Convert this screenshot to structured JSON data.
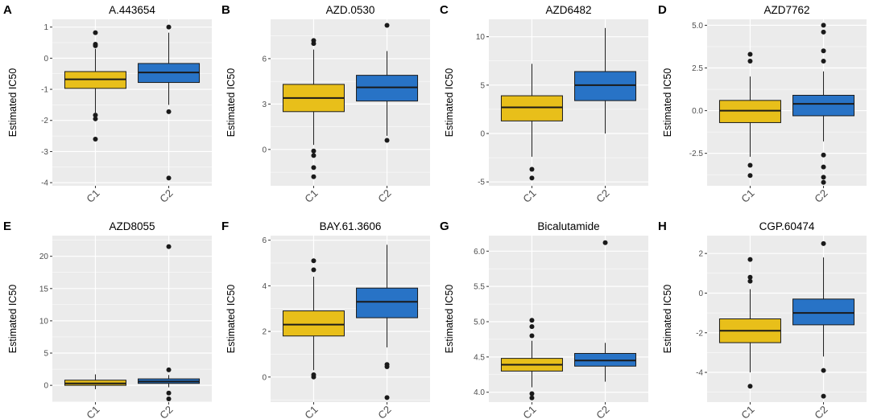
{
  "colors": {
    "C1": "#e8bf1a",
    "C2": "#2873c6"
  },
  "chart_data": [
    {
      "letter": "A",
      "type": "box",
      "title": "A.443654",
      "ylabel": "Estimated IC50",
      "ylim": [
        -4.1,
        1.25
      ],
      "yticks": [
        1,
        0,
        -1,
        -2,
        -3,
        -4
      ],
      "ytick_labels": [
        "1",
        "0",
        "-1",
        "-2",
        "-3",
        "-4"
      ],
      "categories": [
        "C1",
        "C2"
      ],
      "boxes": [
        {
          "group": "C1",
          "lower_whisker": -1.75,
          "q1": -0.97,
          "median": -0.68,
          "q3": -0.43,
          "upper_whisker": 0.3,
          "outliers": [
            0.82,
            0.45,
            0.4,
            -1.83,
            -1.95,
            -2.6
          ]
        },
        {
          "group": "C2",
          "lower_whisker": -1.5,
          "q1": -0.78,
          "median": -0.46,
          "q3": -0.17,
          "upper_whisker": 0.82,
          "outliers": [
            1.0,
            -1.72,
            -3.85
          ]
        }
      ]
    },
    {
      "letter": "B",
      "type": "box",
      "title": "AZD.0530",
      "ylabel": "Estimated IC50",
      "ylim": [
        -2.4,
        8.6
      ],
      "yticks": [
        6,
        3,
        0
      ],
      "ytick_labels": [
        "6",
        "3",
        "0"
      ],
      "categories": [
        "C1",
        "C2"
      ],
      "boxes": [
        {
          "group": "C1",
          "lower_whisker": 0.3,
          "q1": 2.5,
          "median": 3.4,
          "q3": 4.3,
          "upper_whisker": 6.6,
          "outliers": [
            7.2,
            7.0,
            -0.1,
            -0.4,
            -1.2,
            -1.8
          ]
        },
        {
          "group": "C2",
          "lower_whisker": 0.9,
          "q1": 3.2,
          "median": 4.1,
          "q3": 4.9,
          "upper_whisker": 6.5,
          "outliers": [
            8.2,
            0.6
          ]
        }
      ]
    },
    {
      "letter": "C",
      "type": "box",
      "title": "AZD6482",
      "ylabel": "Estimated IC50",
      "ylim": [
        -5.4,
        11.8
      ],
      "yticks": [
        10,
        5,
        0,
        -5
      ],
      "ytick_labels": [
        "10",
        "5",
        "0",
        "-5"
      ],
      "categories": [
        "C1",
        "C2"
      ],
      "boxes": [
        {
          "group": "C1",
          "lower_whisker": -2.4,
          "q1": 1.3,
          "median": 2.7,
          "q3": 3.9,
          "upper_whisker": 7.2,
          "outliers": [
            -3.7,
            -4.6
          ]
        },
        {
          "group": "C2",
          "lower_whisker": 0.0,
          "q1": 3.4,
          "median": 5.0,
          "q3": 6.4,
          "upper_whisker": 10.9,
          "outliers": []
        }
      ]
    },
    {
      "letter": "D",
      "type": "box",
      "title": "AZD7762",
      "ylabel": "Estimated IC50",
      "ylim": [
        -4.4,
        5.35
      ],
      "yticks": [
        5.0,
        2.5,
        0.0,
        -2.5
      ],
      "ytick_labels": [
        "5.0",
        "2.5",
        "0.0",
        "-2.5"
      ],
      "categories": [
        "C1",
        "C2"
      ],
      "boxes": [
        {
          "group": "C1",
          "lower_whisker": -2.7,
          "q1": -0.7,
          "median": 0.0,
          "q3": 0.6,
          "upper_whisker": 2.0,
          "outliers": [
            3.3,
            2.9,
            -3.2,
            -3.8
          ]
        },
        {
          "group": "C2",
          "lower_whisker": -1.8,
          "q1": -0.3,
          "median": 0.4,
          "q3": 0.9,
          "upper_whisker": 2.3,
          "outliers": [
            5.0,
            4.6,
            3.5,
            2.9,
            -2.6,
            -3.3,
            -3.9,
            -4.2
          ]
        }
      ]
    },
    {
      "letter": "E",
      "type": "box",
      "title": "AZD8055",
      "ylabel": "Estimated IC50",
      "ylim": [
        -2.6,
        23.2
      ],
      "yticks": [
        20,
        15,
        10,
        5,
        0
      ],
      "ytick_labels": [
        "20",
        "15",
        "10",
        "5",
        "0"
      ],
      "categories": [
        "C1",
        "C2"
      ],
      "boxes": [
        {
          "group": "C1",
          "lower_whisker": -0.6,
          "q1": 0.0,
          "median": 0.3,
          "q3": 0.8,
          "upper_whisker": 1.7,
          "outliers": []
        },
        {
          "group": "C2",
          "lower_whisker": -0.3,
          "q1": 0.3,
          "median": 0.6,
          "q3": 1.0,
          "upper_whisker": 1.6,
          "outliers": [
            21.5,
            2.4,
            -1.2,
            -2.1
          ]
        }
      ]
    },
    {
      "letter": "F",
      "type": "box",
      "title": "BAY.61.3606",
      "ylabel": "Estimated IC50",
      "ylim": [
        -1.1,
        6.2
      ],
      "yticks": [
        6,
        4,
        2,
        0
      ],
      "ytick_labels": [
        "6",
        "4",
        "2",
        "0"
      ],
      "categories": [
        "C1",
        "C2"
      ],
      "boxes": [
        {
          "group": "C1",
          "lower_whisker": 0.3,
          "q1": 1.8,
          "median": 2.3,
          "q3": 2.9,
          "upper_whisker": 4.4,
          "outliers": [
            5.1,
            4.7,
            0.1,
            0.0
          ]
        },
        {
          "group": "C2",
          "lower_whisker": 1.3,
          "q1": 2.6,
          "median": 3.3,
          "q3": 3.9,
          "upper_whisker": 5.8,
          "outliers": [
            0.55,
            0.45,
            -0.9
          ]
        }
      ]
    },
    {
      "letter": "G",
      "type": "box",
      "title": "Bicalutamide",
      "ylabel": "Estimated IC50",
      "ylim": [
        3.86,
        6.22
      ],
      "yticks": [
        6.0,
        5.5,
        5.0,
        4.5,
        4.0
      ],
      "ytick_labels": [
        "6.0",
        "5.5",
        "5.0",
        "4.5",
        "4.0"
      ],
      "categories": [
        "C1",
        "C2"
      ],
      "boxes": [
        {
          "group": "C1",
          "lower_whisker": 4.07,
          "q1": 4.3,
          "median": 4.39,
          "q3": 4.48,
          "upper_whisker": 4.73,
          "outliers": [
            5.02,
            4.93,
            4.8,
            3.98,
            3.92
          ]
        },
        {
          "group": "C2",
          "lower_whisker": 4.15,
          "q1": 4.37,
          "median": 4.45,
          "q3": 4.55,
          "upper_whisker": 4.7,
          "outliers": [
            6.12
          ]
        }
      ]
    },
    {
      "letter": "H",
      "type": "box",
      "title": "CGP.60474",
      "ylabel": "Estimated IC50",
      "ylim": [
        -5.5,
        2.9
      ],
      "yticks": [
        2,
        0,
        -2,
        -4
      ],
      "ytick_labels": [
        "2",
        "0",
        "-2",
        "-4"
      ],
      "categories": [
        "C1",
        "C2"
      ],
      "boxes": [
        {
          "group": "C1",
          "lower_whisker": -4.0,
          "q1": -2.5,
          "median": -1.9,
          "q3": -1.3,
          "upper_whisker": 0.2,
          "outliers": [
            1.7,
            0.8,
            0.6,
            -4.7
          ]
        },
        {
          "group": "C2",
          "lower_whisker": -3.2,
          "q1": -1.6,
          "median": -1.0,
          "q3": -0.3,
          "upper_whisker": 1.8,
          "outliers": [
            2.5,
            -3.9,
            -5.2
          ]
        }
      ]
    }
  ]
}
